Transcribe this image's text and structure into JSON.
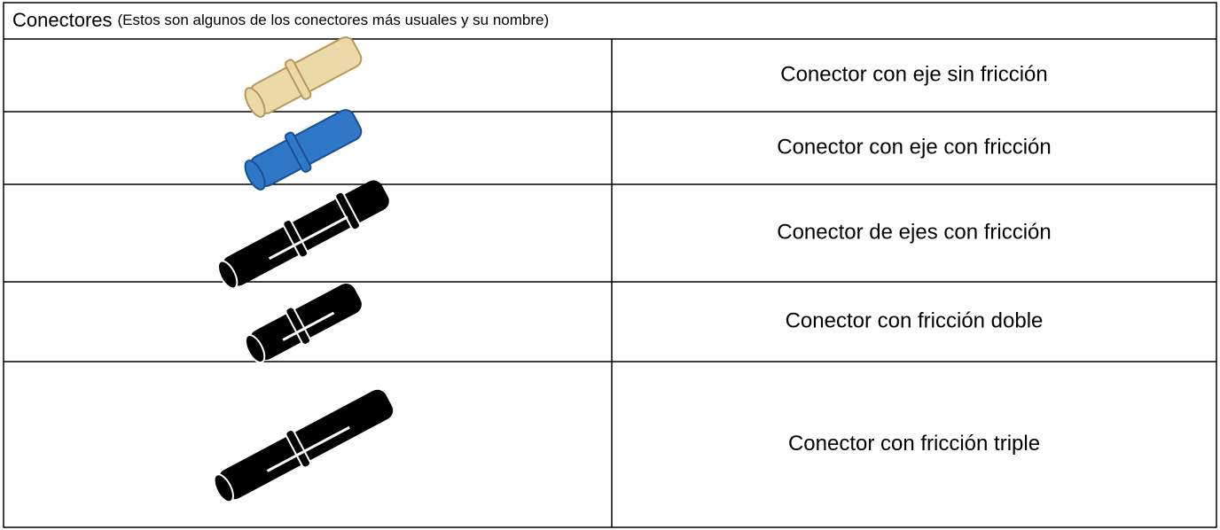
{
  "header": {
    "title": "Conectores",
    "subtitle": "(Estos son algunos de los conectores más usuales y su nombre)"
  },
  "table": {
    "rows": [
      {
        "name": "Conector con eje sin fricción"
      },
      {
        "name": "Conector con eje con fricción"
      },
      {
        "name": "Conector de ejes con fricción"
      },
      {
        "name": "Conector con fricción doble"
      },
      {
        "name": "Conector con fricción triple"
      }
    ]
  }
}
